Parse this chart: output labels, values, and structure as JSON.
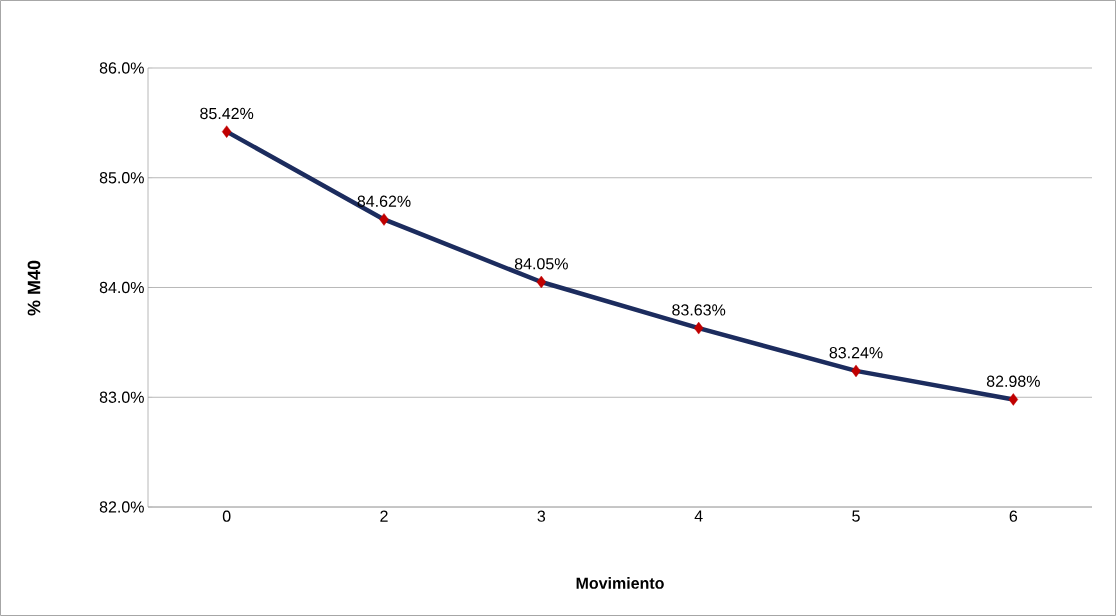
{
  "chart_data": {
    "type": "line",
    "xlabel": "Movimiento",
    "ylabel": "% M40",
    "categories": [
      "0",
      "2",
      "3",
      "4",
      "5",
      "6"
    ],
    "series": [
      {
        "color": "#1c2c5e",
        "colors": [
          "#c00000",
          "#c00000",
          "#c00000",
          "#c00000",
          "#c00000",
          "#c00000"
        ],
        "values": [
          85.42,
          84.62,
          84.05,
          83.63,
          83.24,
          82.98
        ],
        "value_labels": [
          "85.42%",
          "84.62%",
          "84.05%",
          "83.63%",
          "83.24%",
          "82.98%"
        ]
      }
    ],
    "ylim": [
      82,
      86
    ],
    "yticks": [
      {
        "value": 82,
        "label": "82.0%"
      },
      {
        "value": 83,
        "label": "83.0%"
      },
      {
        "value": 84,
        "label": "84.0%"
      },
      {
        "value": 85,
        "label": "85.0%"
      },
      {
        "value": 86,
        "label": "86.0%"
      }
    ],
    "grid": "y",
    "marker": "diamond",
    "line_style": "solid"
  }
}
